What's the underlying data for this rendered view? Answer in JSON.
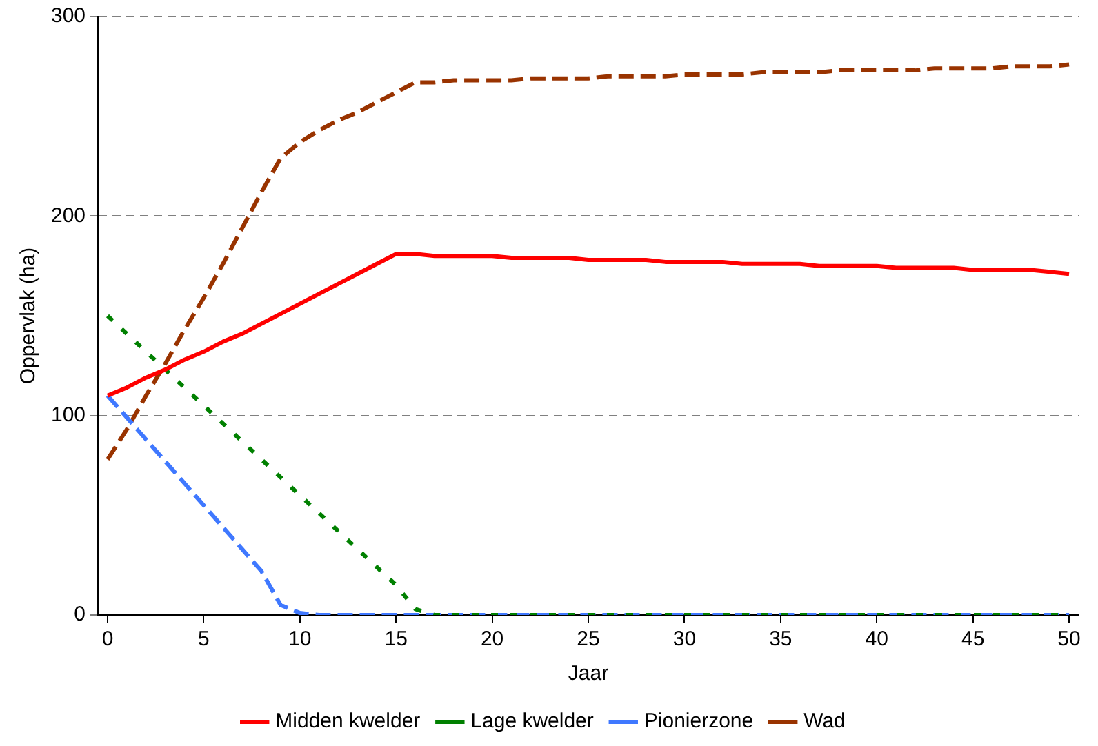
{
  "chart_data": {
    "type": "line",
    "xlabel": "Jaar",
    "ylabel": "Oppervlak (ha)",
    "xlim": [
      -0.5,
      50.5
    ],
    "xticks": [
      0,
      5,
      10,
      15,
      20,
      25,
      30,
      35,
      40,
      45,
      50
    ],
    "ylim": [
      0,
      300
    ],
    "yticks": [
      0,
      100,
      200,
      300
    ],
    "grid": "y",
    "legend": "bottom",
    "marker": "none",
    "x": [
      0,
      1,
      2,
      3,
      4,
      5,
      6,
      7,
      8,
      9,
      10,
      11,
      12,
      13,
      14,
      15,
      16,
      17,
      18,
      19,
      20,
      21,
      22,
      23,
      24,
      25,
      26,
      27,
      28,
      29,
      30,
      31,
      32,
      33,
      34,
      35,
      36,
      37,
      38,
      39,
      40,
      41,
      42,
      43,
      44,
      45,
      46,
      47,
      48,
      49,
      50
    ],
    "series": [
      {
        "name": "Midden kwelder",
        "color": "#ff0000",
        "line_style": "solid",
        "values": [
          110,
          114,
          119,
          123,
          128,
          132,
          137,
          141,
          146,
          151,
          156,
          161,
          166,
          171,
          176,
          181,
          181,
          180,
          180,
          180,
          180,
          179,
          179,
          179,
          179,
          178,
          178,
          178,
          178,
          177,
          177,
          177,
          177,
          176,
          176,
          176,
          176,
          175,
          175,
          175,
          175,
          174,
          174,
          174,
          174,
          173,
          173,
          173,
          173,
          172,
          171
        ]
      },
      {
        "name": "Lage kwelder",
        "color": "#008000",
        "line_style": "dotted",
        "values": [
          150,
          141,
          132,
          123,
          114,
          105,
          96,
          87,
          78,
          69,
          60,
          51,
          42,
          33,
          24,
          15,
          3,
          0,
          0,
          0,
          0,
          0,
          0,
          0,
          0,
          0,
          0,
          0,
          0,
          0,
          0,
          0,
          0,
          0,
          0,
          0,
          0,
          0,
          0,
          0,
          0,
          0,
          0,
          0,
          0,
          0,
          0,
          0,
          0,
          0,
          0
        ]
      },
      {
        "name": "Pionierzone",
        "color": "#3f78ff",
        "line_style": "dashed",
        "values": [
          110,
          99,
          88,
          77,
          66,
          55,
          44,
          33,
          22,
          5,
          1,
          0,
          0,
          0,
          0,
          0,
          0,
          0,
          0,
          0,
          0,
          0,
          0,
          0,
          0,
          0,
          0,
          0,
          0,
          0,
          0,
          0,
          0,
          0,
          0,
          0,
          0,
          0,
          0,
          0,
          0,
          0,
          0,
          0,
          0,
          0,
          0,
          0,
          0,
          0,
          0
        ]
      },
      {
        "name": "Wad",
        "color": "#993300",
        "line_style": "dashed",
        "values": [
          78,
          93,
          110,
          126,
          143,
          159,
          176,
          194,
          212,
          229,
          237,
          243,
          248,
          252,
          257,
          262,
          267,
          267,
          268,
          268,
          268,
          268,
          269,
          269,
          269,
          269,
          270,
          270,
          270,
          270,
          271,
          271,
          271,
          271,
          272,
          272,
          272,
          272,
          273,
          273,
          273,
          273,
          273,
          274,
          274,
          274,
          274,
          275,
          275,
          275,
          276
        ]
      }
    ]
  }
}
